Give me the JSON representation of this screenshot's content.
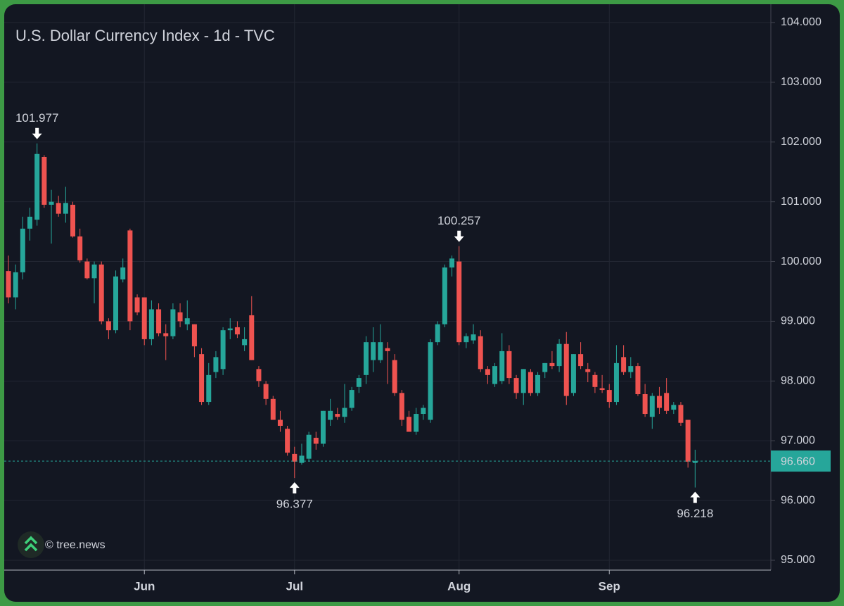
{
  "chart_data": {
    "type": "candlestick",
    "title": "U.S. Dollar Currency Index - 1d - TVC",
    "watermark": "© tree.news",
    "up_color": "#26a69a",
    "down_color": "#ef5350",
    "grid": true,
    "ylim": [
      95,
      104
    ],
    "yticks": [
      {
        "value": 95,
        "label": "95.000"
      },
      {
        "value": 96,
        "label": "96.000"
      },
      {
        "value": 97,
        "label": "97.000"
      },
      {
        "value": 98,
        "label": "98.000"
      },
      {
        "value": 99,
        "label": "99.000"
      },
      {
        "value": 100,
        "label": "100.000"
      },
      {
        "value": 101,
        "label": "101.000"
      },
      {
        "value": 102,
        "label": "102.000"
      },
      {
        "value": 103,
        "label": "103.000"
      },
      {
        "value": 104,
        "label": "104.000"
      }
    ],
    "last_price_label": "96.660",
    "categories": [
      null,
      null,
      null,
      null,
      null,
      null,
      null,
      null,
      null,
      null,
      null,
      null,
      null,
      null,
      null,
      null,
      null,
      null,
      null,
      "Jun",
      null,
      null,
      null,
      null,
      null,
      null,
      null,
      null,
      null,
      null,
      null,
      null,
      null,
      null,
      null,
      null,
      null,
      null,
      null,
      null,
      "Jul",
      null,
      null,
      null,
      null,
      null,
      null,
      null,
      null,
      null,
      null,
      null,
      null,
      null,
      null,
      null,
      null,
      null,
      null,
      null,
      null,
      null,
      null,
      "Aug",
      null,
      null,
      null,
      null,
      null,
      null,
      null,
      null,
      null,
      null,
      null,
      null,
      null,
      null,
      null,
      null,
      null,
      null,
      null,
      null,
      "Sep",
      null,
      null,
      null,
      null,
      null,
      null,
      null,
      null,
      null,
      null,
      null,
      null
    ],
    "ohlc": [
      [
        99.84,
        100.1,
        99.3,
        99.4
      ],
      [
        99.4,
        99.95,
        99.2,
        99.82
      ],
      [
        99.82,
        100.75,
        99.7,
        100.55
      ],
      [
        100.55,
        100.9,
        100.35,
        100.75
      ],
      [
        100.7,
        101.977,
        100.6,
        101.8
      ],
      [
        101.75,
        101.78,
        100.9,
        100.95
      ],
      [
        100.95,
        101.2,
        100.3,
        101.0
      ],
      [
        100.98,
        101.1,
        100.75,
        100.8
      ],
      [
        100.8,
        101.25,
        100.65,
        100.98
      ],
      [
        100.95,
        101.0,
        100.4,
        100.42
      ],
      [
        100.42,
        100.55,
        99.98,
        100.02
      ],
      [
        100.0,
        100.05,
        99.7,
        99.72
      ],
      [
        99.72,
        100.0,
        99.3,
        99.95
      ],
      [
        99.95,
        100.0,
        98.95,
        99.0
      ],
      [
        99.0,
        99.05,
        98.7,
        98.85
      ],
      [
        98.85,
        99.85,
        98.8,
        99.75
      ],
      [
        99.7,
        100.05,
        99.65,
        99.9
      ],
      [
        100.52,
        100.55,
        98.85,
        99.0
      ],
      [
        99.4,
        99.45,
        99.1,
        99.15
      ],
      [
        99.4,
        99.4,
        98.6,
        98.7
      ],
      [
        98.7,
        99.35,
        98.6,
        99.2
      ],
      [
        99.2,
        99.3,
        98.75,
        98.8
      ],
      [
        98.8,
        98.95,
        98.35,
        98.75
      ],
      [
        98.75,
        99.3,
        98.7,
        99.2
      ],
      [
        99.15,
        99.3,
        98.9,
        99.0
      ],
      [
        98.95,
        99.35,
        98.85,
        99.05
      ],
      [
        98.95,
        98.95,
        98.4,
        98.58
      ],
      [
        98.45,
        98.55,
        97.6,
        97.65
      ],
      [
        97.65,
        98.3,
        97.6,
        98.1
      ],
      [
        98.15,
        98.5,
        98.05,
        98.4
      ],
      [
        98.2,
        98.9,
        98.1,
        98.85
      ],
      [
        98.85,
        99.05,
        98.7,
        98.88
      ],
      [
        98.9,
        99.0,
        98.72,
        98.78
      ],
      [
        98.6,
        98.9,
        98.5,
        98.7
      ],
      [
        99.1,
        99.42,
        98.35,
        98.35
      ],
      [
        98.2,
        98.25,
        97.9,
        98.0
      ],
      [
        97.95,
        98.0,
        97.6,
        97.7
      ],
      [
        97.7,
        97.75,
        97.35,
        97.35
      ],
      [
        97.35,
        97.5,
        97.15,
        97.25
      ],
      [
        97.2,
        97.25,
        96.75,
        96.8
      ],
      [
        96.78,
        96.9,
        96.377,
        96.65
      ],
      [
        96.63,
        96.95,
        96.6,
        96.75
      ],
      [
        96.7,
        97.15,
        96.65,
        97.1
      ],
      [
        97.05,
        97.15,
        96.85,
        96.95
      ],
      [
        96.95,
        97.5,
        96.9,
        97.5
      ],
      [
        97.35,
        97.7,
        97.25,
        97.5
      ],
      [
        97.45,
        97.55,
        97.35,
        97.4
      ],
      [
        97.4,
        97.95,
        97.3,
        97.55
      ],
      [
        97.55,
        97.9,
        97.5,
        97.85
      ],
      [
        97.9,
        98.1,
        97.8,
        98.05
      ],
      [
        98.1,
        98.75,
        97.95,
        98.65
      ],
      [
        98.35,
        98.9,
        98.15,
        98.65
      ],
      [
        98.35,
        98.95,
        98.3,
        98.65
      ],
      [
        98.55,
        98.65,
        97.95,
        98.5
      ],
      [
        98.35,
        98.45,
        97.75,
        97.8
      ],
      [
        97.8,
        97.85,
        97.25,
        97.35
      ],
      [
        97.4,
        97.5,
        97.15,
        97.15
      ],
      [
        97.15,
        97.55,
        97.1,
        97.45
      ],
      [
        97.45,
        97.6,
        97.35,
        97.55
      ],
      [
        97.35,
        98.7,
        97.3,
        98.65
      ],
      [
        98.65,
        99.0,
        98.6,
        98.95
      ],
      [
        98.95,
        99.95,
        98.9,
        99.9
      ],
      [
        99.9,
        100.1,
        99.75,
        100.05
      ],
      [
        100.0,
        100.257,
        98.6,
        98.65
      ],
      [
        98.65,
        98.8,
        98.55,
        98.75
      ],
      [
        98.68,
        98.95,
        98.62,
        98.78
      ],
      [
        98.75,
        98.85,
        98.15,
        98.2
      ],
      [
        98.2,
        98.25,
        97.95,
        98.1
      ],
      [
        97.95,
        98.3,
        97.9,
        98.25
      ],
      [
        98.0,
        98.8,
        97.95,
        98.5
      ],
      [
        98.5,
        98.6,
        97.95,
        98.05
      ],
      [
        98.05,
        98.1,
        97.7,
        97.8
      ],
      [
        97.8,
        98.2,
        97.6,
        98.2
      ],
      [
        98.15,
        98.2,
        97.75,
        97.8
      ],
      [
        97.8,
        98.15,
        97.75,
        98.1
      ],
      [
        98.15,
        98.3,
        98.05,
        98.3
      ],
      [
        98.3,
        98.5,
        98.2,
        98.25
      ],
      [
        98.25,
        98.7,
        98.15,
        98.62
      ],
      [
        98.62,
        98.82,
        97.6,
        97.75
      ],
      [
        97.8,
        98.45,
        97.75,
        98.45
      ],
      [
        98.45,
        98.65,
        98.2,
        98.25
      ],
      [
        98.2,
        98.3,
        97.98,
        98.15
      ],
      [
        98.1,
        98.15,
        97.8,
        97.9
      ],
      [
        97.88,
        98.1,
        97.8,
        97.85
      ],
      [
        97.85,
        97.95,
        97.55,
        97.65
      ],
      [
        97.65,
        98.6,
        97.6,
        98.3
      ],
      [
        98.4,
        98.6,
        98.1,
        98.15
      ],
      [
        98.15,
        98.4,
        98.05,
        98.25
      ],
      [
        98.25,
        98.3,
        97.75,
        97.78
      ],
      [
        97.78,
        97.95,
        97.4,
        97.45
      ],
      [
        97.4,
        97.8,
        97.2,
        97.75
      ],
      [
        97.75,
        97.9,
        97.45,
        97.55
      ],
      [
        97.8,
        98.05,
        97.45,
        97.5
      ],
      [
        97.52,
        97.65,
        97.45,
        97.6
      ],
      [
        97.6,
        97.65,
        97.25,
        97.3
      ],
      [
        97.35,
        97.35,
        96.55,
        96.65
      ],
      [
        96.63,
        96.85,
        96.218,
        96.66
      ]
    ],
    "annotations": [
      {
        "text": "101.977",
        "candle": 4,
        "side": "high"
      },
      {
        "text": "96.377",
        "candle": 40,
        "side": "low"
      },
      {
        "text": "100.257",
        "candle": 63,
        "side": "high"
      },
      {
        "text": "96.218",
        "candle": 96,
        "side": "low"
      }
    ]
  }
}
